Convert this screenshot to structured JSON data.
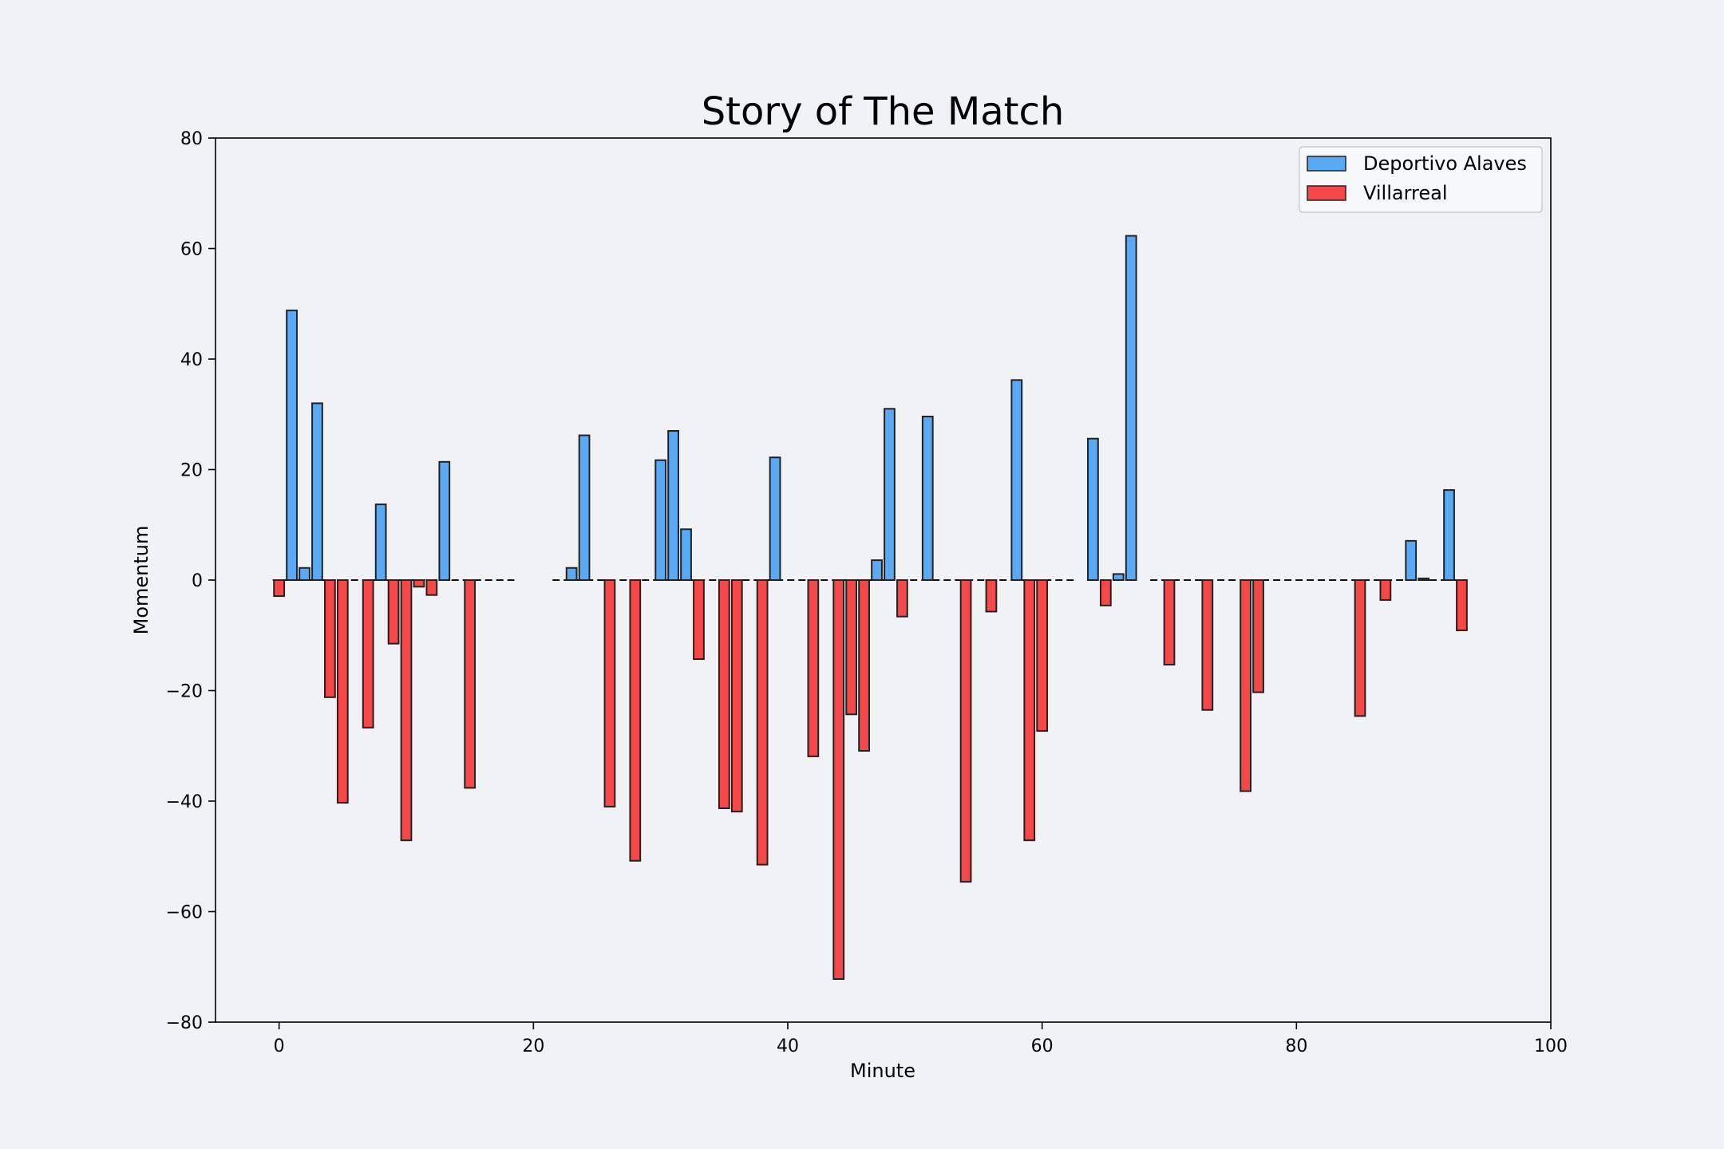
{
  "chart_data": {
    "type": "bar",
    "title": "Story of The Match",
    "xlabel": "Minute",
    "ylabel": "Momentum",
    "xlim": [
      -5,
      100
    ],
    "ylim": [
      -80,
      80
    ],
    "xticks": [
      0,
      20,
      40,
      60,
      80,
      100
    ],
    "yticks": [
      -80,
      -60,
      -40,
      -20,
      0,
      20,
      40,
      60,
      80
    ],
    "legend_position": "top-right",
    "series": [
      {
        "name": "Deportivo Alaves",
        "color": "#5aa9f5",
        "points": [
          [
            1,
            48.8
          ],
          [
            2,
            2.2
          ],
          [
            3,
            32
          ],
          [
            8,
            13.7
          ],
          [
            13,
            21.4
          ],
          [
            23,
            2.2
          ],
          [
            24,
            26.2
          ],
          [
            30,
            21.7
          ],
          [
            31,
            27
          ],
          [
            32,
            9.2
          ],
          [
            39,
            22.2
          ],
          [
            47,
            3.6
          ],
          [
            48,
            31
          ],
          [
            51,
            29.6
          ],
          [
            58,
            36.2
          ],
          [
            64,
            25.6
          ],
          [
            66,
            1.1
          ],
          [
            67,
            62.3
          ],
          [
            89,
            7.1
          ],
          [
            90,
            0.3
          ],
          [
            92,
            16.3
          ]
        ]
      },
      {
        "name": "Villarreal",
        "color": "#f64848",
        "points": [
          [
            0,
            -2.9
          ],
          [
            4,
            -21.2
          ],
          [
            5,
            -40.3
          ],
          [
            7,
            -26.7
          ],
          [
            9,
            -11.5
          ],
          [
            10,
            -47.1
          ],
          [
            11,
            -1.2
          ],
          [
            12,
            -2.7
          ],
          [
            15,
            -37.6
          ],
          [
            26,
            -41
          ],
          [
            28,
            -50.8
          ],
          [
            33,
            -14.3
          ],
          [
            35,
            -41.3
          ],
          [
            36,
            -41.9
          ],
          [
            38,
            -51.5
          ],
          [
            42,
            -31.9
          ],
          [
            44,
            -72.2
          ],
          [
            45,
            -24.3
          ],
          [
            46,
            -30.9
          ],
          [
            49,
            -6.6
          ],
          [
            54,
            -54.6
          ],
          [
            56,
            -5.7
          ],
          [
            59,
            -47.1
          ],
          [
            60,
            -27.3
          ],
          [
            65,
            -4.6
          ],
          [
            70,
            -15.3
          ],
          [
            73,
            -23.5
          ],
          [
            76,
            -38.2
          ],
          [
            77,
            -20.3
          ],
          [
            85,
            -24.6
          ],
          [
            87,
            -3.6
          ],
          [
            93,
            -9.1
          ]
        ]
      }
    ],
    "baseline_segments": [
      [
        -0.5,
        18.5
      ],
      [
        21.5,
        62.5
      ],
      [
        68.5,
        93
      ]
    ],
    "bar_width": 0.8
  }
}
